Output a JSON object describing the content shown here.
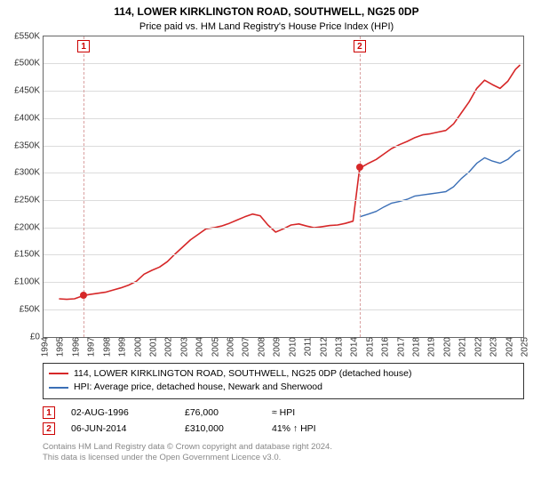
{
  "title": "114, LOWER KIRKLINGTON ROAD, SOUTHWELL, NG25 0DP",
  "subtitle": "Price paid vs. HM Land Registry's House Price Index (HPI)",
  "chart": {
    "type": "line",
    "background_color": "#ffffff",
    "grid_color": "#dcdcdc",
    "axis_color": "#666666",
    "x_range": [
      1994,
      2025
    ],
    "y_range": [
      0,
      550000
    ],
    "y_ticks": [
      0,
      50000,
      100000,
      150000,
      200000,
      250000,
      300000,
      350000,
      400000,
      450000,
      500000,
      550000
    ],
    "y_tick_labels": [
      "£0",
      "£50K",
      "£100K",
      "£150K",
      "£200K",
      "£250K",
      "£300K",
      "£350K",
      "£400K",
      "£450K",
      "£500K",
      "£550K"
    ],
    "x_ticks": [
      1994,
      1995,
      1996,
      1997,
      1998,
      1999,
      2000,
      2001,
      2002,
      2003,
      2004,
      2005,
      2006,
      2007,
      2008,
      2009,
      2010,
      2011,
      2012,
      2013,
      2014,
      2015,
      2016,
      2017,
      2018,
      2019,
      2020,
      2021,
      2022,
      2023,
      2024,
      2025
    ],
    "label_fontsize": 10,
    "series": [
      {
        "name": "114, LOWER KIRKLINGTON ROAD, SOUTHWELL, NG25 0DP (detached house)",
        "color": "#d62728",
        "width": 1.6,
        "data": [
          [
            1995.0,
            70000
          ],
          [
            1995.5,
            69000
          ],
          [
            1996.0,
            70000
          ],
          [
            1996.6,
            76000
          ],
          [
            1997.0,
            78000
          ],
          [
            1997.5,
            80000
          ],
          [
            1998.0,
            82000
          ],
          [
            1998.5,
            86000
          ],
          [
            1999.0,
            90000
          ],
          [
            1999.5,
            95000
          ],
          [
            2000.0,
            102000
          ],
          [
            2000.5,
            115000
          ],
          [
            2001.0,
            122000
          ],
          [
            2001.5,
            128000
          ],
          [
            2002.0,
            138000
          ],
          [
            2002.5,
            152000
          ],
          [
            2003.0,
            165000
          ],
          [
            2003.5,
            178000
          ],
          [
            2004.0,
            188000
          ],
          [
            2004.5,
            198000
          ],
          [
            2005.0,
            200000
          ],
          [
            2005.5,
            203000
          ],
          [
            2006.0,
            208000
          ],
          [
            2006.5,
            214000
          ],
          [
            2007.0,
            220000
          ],
          [
            2007.5,
            225000
          ],
          [
            2008.0,
            222000
          ],
          [
            2008.5,
            205000
          ],
          [
            2009.0,
            192000
          ],
          [
            2009.5,
            198000
          ],
          [
            2010.0,
            205000
          ],
          [
            2010.5,
            207000
          ],
          [
            2011.0,
            203000
          ],
          [
            2011.5,
            200000
          ],
          [
            2012.0,
            202000
          ],
          [
            2012.5,
            204000
          ],
          [
            2013.0,
            205000
          ],
          [
            2013.5,
            208000
          ],
          [
            2014.0,
            212000
          ],
          [
            2014.43,
            310000
          ],
          [
            2014.5,
            310000
          ],
          [
            2015.0,
            318000
          ],
          [
            2015.5,
            325000
          ],
          [
            2016.0,
            335000
          ],
          [
            2016.5,
            345000
          ],
          [
            2017.0,
            352000
          ],
          [
            2017.5,
            358000
          ],
          [
            2018.0,
            365000
          ],
          [
            2018.5,
            370000
          ],
          [
            2019.0,
            372000
          ],
          [
            2019.5,
            375000
          ],
          [
            2020.0,
            378000
          ],
          [
            2020.5,
            390000
          ],
          [
            2021.0,
            410000
          ],
          [
            2021.5,
            430000
          ],
          [
            2022.0,
            455000
          ],
          [
            2022.5,
            470000
          ],
          [
            2023.0,
            462000
          ],
          [
            2023.5,
            455000
          ],
          [
            2024.0,
            468000
          ],
          [
            2024.5,
            490000
          ],
          [
            2024.8,
            498000
          ]
        ]
      },
      {
        "name": "HPI: Average price, detached house, Newark and Sherwood",
        "color": "#3b6fb6",
        "width": 1.4,
        "data": [
          [
            2014.43,
            220000
          ],
          [
            2015.0,
            225000
          ],
          [
            2015.5,
            230000
          ],
          [
            2016.0,
            238000
          ],
          [
            2016.5,
            245000
          ],
          [
            2017.0,
            248000
          ],
          [
            2017.5,
            252000
          ],
          [
            2018.0,
            258000
          ],
          [
            2018.5,
            260000
          ],
          [
            2019.0,
            262000
          ],
          [
            2019.5,
            264000
          ],
          [
            2020.0,
            266000
          ],
          [
            2020.5,
            275000
          ],
          [
            2021.0,
            290000
          ],
          [
            2021.5,
            302000
          ],
          [
            2022.0,
            318000
          ],
          [
            2022.5,
            328000
          ],
          [
            2023.0,
            322000
          ],
          [
            2023.5,
            318000
          ],
          [
            2024.0,
            325000
          ],
          [
            2024.5,
            338000
          ],
          [
            2024.8,
            342000
          ]
        ]
      }
    ],
    "sale_markers": [
      {
        "n": "1",
        "year": 1996.59,
        "price": 76000,
        "color": "#d62728",
        "line_color": "#d9a0a0"
      },
      {
        "n": "2",
        "year": 2014.43,
        "price": 310000,
        "color": "#d62728",
        "line_color": "#d9a0a0"
      }
    ]
  },
  "legend": {
    "border_color": "#333333",
    "items": [
      {
        "color": "#d62728",
        "label": "114, LOWER KIRKLINGTON ROAD, SOUTHWELL, NG25 0DP (detached house)"
      },
      {
        "color": "#3b6fb6",
        "label": "HPI: Average price, detached house, Newark and Sherwood"
      }
    ]
  },
  "sales_table": [
    {
      "n": "1",
      "date": "02-AUG-1996",
      "price": "£76,000",
      "vs_hpi": "≈ HPI"
    },
    {
      "n": "2",
      "date": "06-JUN-2014",
      "price": "£310,000",
      "vs_hpi": "41% ↑ HPI"
    }
  ],
  "footer_lines": [
    "Contains HM Land Registry data © Crown copyright and database right 2024.",
    "This data is licensed under the Open Government Licence v3.0."
  ]
}
